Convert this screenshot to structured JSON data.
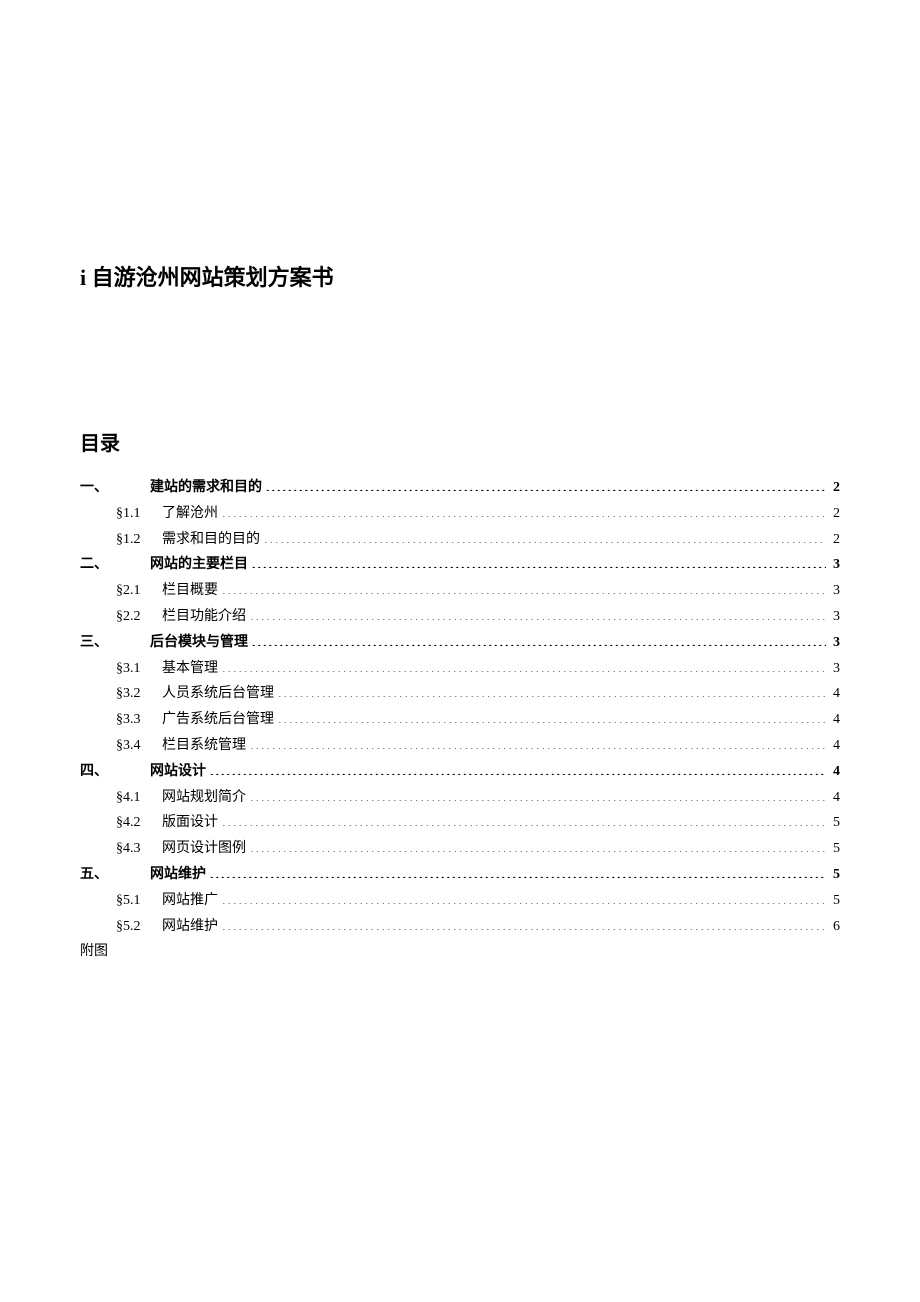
{
  "document": {
    "title": "i 自游沧州网站策划方案书",
    "toc_heading": "目录",
    "appendix": "附图",
    "text_color": "#000000",
    "background_color": "#ffffff",
    "title_fontsize": 22,
    "toc_heading_fontsize": 20,
    "toc_fontsize": 14
  },
  "toc": {
    "items": [
      {
        "level": 1,
        "num": "一、",
        "label": "建站的需求和目的",
        "page": "2"
      },
      {
        "level": 2,
        "num": "§1.1",
        "label": "了解沧州",
        "page": "2"
      },
      {
        "level": 2,
        "num": "§1.2",
        "label": "需求和目的目的",
        "page": "2"
      },
      {
        "level": 1,
        "num": "二、",
        "label": "网站的主要栏目",
        "page": "3"
      },
      {
        "level": 2,
        "num": "§2.1",
        "label": "栏目概要",
        "page": "3"
      },
      {
        "level": 2,
        "num": "§2.2",
        "label": "栏目功能介绍",
        "page": "3"
      },
      {
        "level": 1,
        "num": "三、",
        "label": "后台模块与管理",
        "page": "3"
      },
      {
        "level": 2,
        "num": "§3.1",
        "label": "基本管理",
        "page": "3"
      },
      {
        "level": 2,
        "num": "§3.2",
        "label": "人员系统后台管理",
        "page": "4"
      },
      {
        "level": 2,
        "num": "§3.3",
        "label": "广告系统后台管理",
        "page": "4"
      },
      {
        "level": 2,
        "num": "§3.4",
        "label": "栏目系统管理",
        "page": "4"
      },
      {
        "level": 1,
        "num": "四、",
        "label": "网站设计",
        "page": "4"
      },
      {
        "level": 2,
        "num": "§4.1",
        "label": "网站规划简介",
        "page": "4"
      },
      {
        "level": 2,
        "num": "§4.2",
        "label": "版面设计",
        "page": "5"
      },
      {
        "level": 2,
        "num": "§4.3",
        "label": "网页设计图例",
        "page": "5"
      },
      {
        "level": 1,
        "num": "五、",
        "label": "网站维护",
        "page": "5"
      },
      {
        "level": 2,
        "num": "§5.1",
        "label": "网站推广",
        "page": "5"
      },
      {
        "level": 2,
        "num": "§5.2",
        "label": "网站维护",
        "page": "6"
      }
    ]
  }
}
